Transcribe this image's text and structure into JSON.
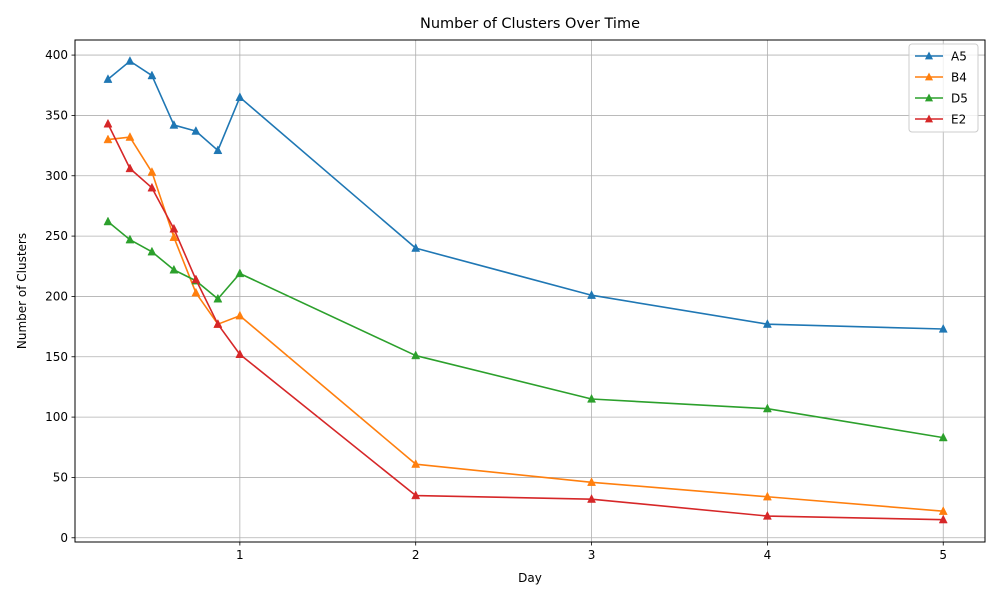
{
  "chart_data": {
    "type": "line",
    "title": "Number of Clusters Over Time",
    "xlabel": "Day",
    "ylabel": "Number of Clusters",
    "x": [
      0.25,
      0.375,
      0.5,
      0.625,
      0.75,
      0.875,
      1,
      2,
      3,
      4,
      5
    ],
    "xlim": [
      0.0625,
      5.2375
    ],
    "ylim": [
      -3.5,
      412.5
    ],
    "xticks": [
      1,
      2,
      3,
      4,
      5
    ],
    "xtick_labels": [
      "1",
      "2",
      "3",
      "4",
      "5"
    ],
    "yticks": [
      0,
      50,
      100,
      150,
      200,
      250,
      300,
      350,
      400
    ],
    "ytick_labels": [
      "0",
      "50",
      "100",
      "150",
      "200",
      "250",
      "300",
      "350",
      "400"
    ],
    "grid": true,
    "legend_position": "top-right",
    "marker": "triangle-up",
    "series": [
      {
        "name": "A5",
        "color": "#1f77b4",
        "values": [
          380,
          395,
          383,
          342,
          337,
          321,
          365,
          240,
          201,
          177,
          173
        ]
      },
      {
        "name": "B4",
        "color": "#ff7f0e",
        "values": [
          330,
          332,
          303,
          249,
          203,
          177,
          184,
          61,
          46,
          34,
          22
        ]
      },
      {
        "name": "D5",
        "color": "#2ca02c",
        "values": [
          262,
          247,
          237,
          222,
          213,
          198,
          219,
          151,
          115,
          107,
          83
        ]
      },
      {
        "name": "E2",
        "color": "#d62728",
        "values": [
          343,
          306,
          290,
          256,
          214,
          177,
          152,
          35,
          32,
          18,
          15
        ]
      }
    ]
  }
}
